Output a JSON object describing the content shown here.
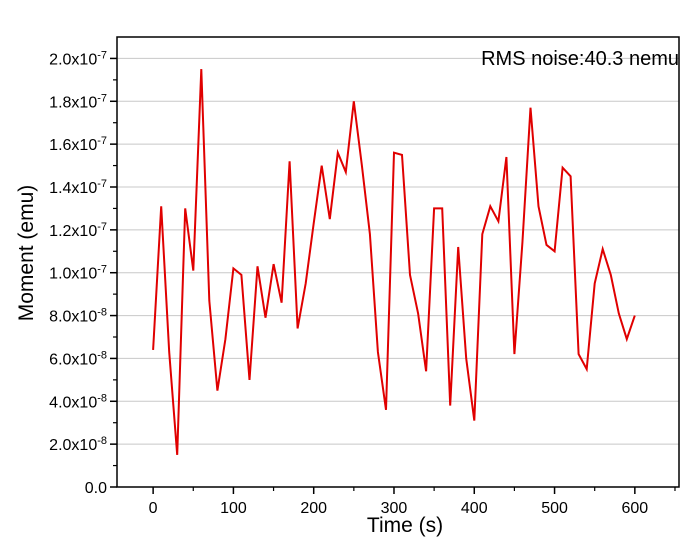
{
  "chart_data": {
    "type": "line",
    "xlabel": "Time (s)",
    "ylabel": "Moment (emu)",
    "annotation": "RMS noise:40.3 nemu",
    "xlim": [
      -45,
      655
    ],
    "ylim": [
      0,
      2.1e-07
    ],
    "x_ticks": [
      0,
      100,
      200,
      300,
      400,
      500,
      600
    ],
    "x_tick_labels": [
      "0",
      "100",
      "200",
      "300",
      "400",
      "500",
      "600"
    ],
    "y_ticks": [
      0,
      2e-08,
      4e-08,
      6e-08,
      8e-08,
      1e-07,
      1.2e-07,
      1.4e-07,
      1.6e-07,
      1.8e-07,
      2e-07
    ],
    "y_tick_labels": [
      "0.0",
      "2.0x10-8",
      "4.0x10-8",
      "6.0x10-8",
      "8.0x10-8",
      "1.0x10-7",
      "1.2x10-7",
      "1.4x10-7",
      "1.6x10-7",
      "1.8x10-7",
      "2.0x10-7"
    ],
    "grid": true,
    "line_color": "#e00000",
    "series": [
      {
        "x": [
          0,
          10,
          20,
          30,
          40,
          50,
          60,
          70,
          80,
          90,
          100,
          110,
          120,
          130,
          140,
          150,
          160,
          170,
          180,
          190,
          200,
          210,
          220,
          230,
          240,
          250,
          260,
          270,
          280,
          290,
          300,
          310,
          320,
          330,
          340,
          350,
          360,
          370,
          380,
          390,
          400,
          410,
          420,
          430,
          440,
          450,
          460,
          470,
          480,
          490,
          500,
          510,
          520,
          530,
          540,
          550,
          560,
          570,
          580,
          590,
          600
        ],
        "values": [
          6.4e-08,
          1.31e-07,
          6.3e-08,
          1.5e-08,
          1.3e-07,
          1.01e-07,
          1.95e-07,
          8.7e-08,
          4.5e-08,
          6.9e-08,
          1.02e-07,
          9.9e-08,
          5e-08,
          1.03e-07,
          7.9e-08,
          1.04e-07,
          8.6e-08,
          1.52e-07,
          7.4e-08,
          9.5e-08,
          1.23e-07,
          1.5e-07,
          1.25e-07,
          1.56e-07,
          1.47e-07,
          1.8e-07,
          1.5e-07,
          1.18e-07,
          6.3e-08,
          3.6e-08,
          1.56e-07,
          1.55e-07,
          9.9e-08,
          8.1e-08,
          5.4e-08,
          1.3e-07,
          1.3e-07,
          3.8e-08,
          1.12e-07,
          6e-08,
          3.1e-08,
          1.18e-07,
          1.31e-07,
          1.24e-07,
          1.54e-07,
          6.2e-08,
          1.14e-07,
          1.77e-07,
          1.31e-07,
          1.13e-07,
          1.1e-07,
          1.49e-07,
          1.45e-07,
          6.2e-08,
          5.5e-08,
          9.5e-08,
          1.11e-07,
          9.9e-08,
          8.1e-08,
          6.9e-08,
          8e-08
        ]
      }
    ]
  }
}
